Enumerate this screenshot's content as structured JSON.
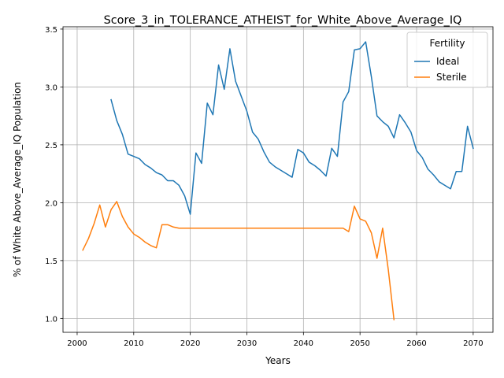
{
  "chart_data": {
    "type": "line",
    "title": "Score_3_in_TOLERANCE_ATHEIST_for_White_Above_Average_IQ",
    "xlabel": "Years",
    "ylabel": "% of White Above_Average_IQ Population",
    "xlim": [
      1997.5,
      2073.5
    ],
    "ylim": [
      0.88,
      3.52
    ],
    "x_ticks": [
      2000,
      2010,
      2020,
      2030,
      2040,
      2050,
      2060,
      2070
    ],
    "y_ticks": [
      1.0,
      1.5,
      2.0,
      2.5,
      3.0,
      3.5
    ],
    "grid": true,
    "legend": {
      "title": "Fertility",
      "placement": "top-right"
    },
    "series": [
      {
        "name": "Ideal",
        "color": "#1f77b4",
        "x": [
          2006,
          2007,
          2008,
          2009,
          2010,
          2011,
          2012,
          2013,
          2014,
          2015,
          2016,
          2017,
          2018,
          2019,
          2020,
          2021,
          2022,
          2023,
          2024,
          2025,
          2026,
          2027,
          2028,
          2029,
          2030,
          2031,
          2032,
          2033,
          2034,
          2035,
          2036,
          2037,
          2038,
          2039,
          2040,
          2041,
          2042,
          2043,
          2044,
          2045,
          2046,
          2047,
          2048,
          2049,
          2050,
          2051,
          2052,
          2053,
          2054,
          2055,
          2056,
          2057,
          2058,
          2059,
          2060,
          2061,
          2062,
          2063,
          2064,
          2065,
          2066,
          2067,
          2068,
          2069,
          2070
        ],
        "y": [
          2.89,
          2.71,
          2.59,
          2.42,
          2.4,
          2.38,
          2.33,
          2.3,
          2.26,
          2.24,
          2.19,
          2.19,
          2.15,
          2.06,
          1.9,
          2.43,
          2.34,
          2.86,
          2.76,
          3.19,
          2.98,
          3.33,
          3.05,
          2.92,
          2.79,
          2.61,
          2.55,
          2.44,
          2.35,
          2.31,
          2.28,
          2.25,
          2.22,
          2.46,
          2.43,
          2.35,
          2.32,
          2.28,
          2.23,
          2.47,
          2.4,
          2.87,
          2.96,
          3.32,
          3.33,
          3.39,
          3.09,
          2.75,
          2.7,
          2.66,
          2.56,
          2.76,
          2.69,
          2.61,
          2.45,
          2.39,
          2.29,
          2.24,
          2.18,
          2.15,
          2.12,
          2.27,
          2.27,
          2.66,
          2.47
        ]
      },
      {
        "name": "Sterile",
        "color": "#ff7f0e",
        "x": [
          2001,
          2002,
          2003,
          2004,
          2005,
          2006,
          2007,
          2008,
          2009,
          2010,
          2011,
          2012,
          2013,
          2014,
          2015,
          2016,
          2017,
          2018,
          2019,
          2020,
          2021,
          2022,
          2023,
          2024,
          2025,
          2026,
          2027,
          2028,
          2029,
          2030,
          2031,
          2032,
          2033,
          2034,
          2035,
          2036,
          2037,
          2038,
          2039,
          2040,
          2041,
          2042,
          2043,
          2044,
          2045,
          2046,
          2047,
          2048,
          2049,
          2050,
          2051,
          2052,
          2053,
          2054,
          2055,
          2056
        ],
        "y": [
          1.59,
          1.69,
          1.82,
          1.98,
          1.79,
          1.94,
          2.01,
          1.88,
          1.79,
          1.73,
          1.7,
          1.66,
          1.63,
          1.61,
          1.81,
          1.81,
          1.79,
          1.78,
          1.78,
          1.78,
          1.78,
          1.78,
          1.78,
          1.78,
          1.78,
          1.78,
          1.78,
          1.78,
          1.78,
          1.78,
          1.78,
          1.78,
          1.78,
          1.78,
          1.78,
          1.78,
          1.78,
          1.78,
          1.78,
          1.78,
          1.78,
          1.78,
          1.78,
          1.78,
          1.78,
          1.78,
          1.78,
          1.75,
          1.97,
          1.86,
          1.84,
          1.74,
          1.52,
          1.78,
          1.42,
          0.99
        ]
      }
    ]
  }
}
